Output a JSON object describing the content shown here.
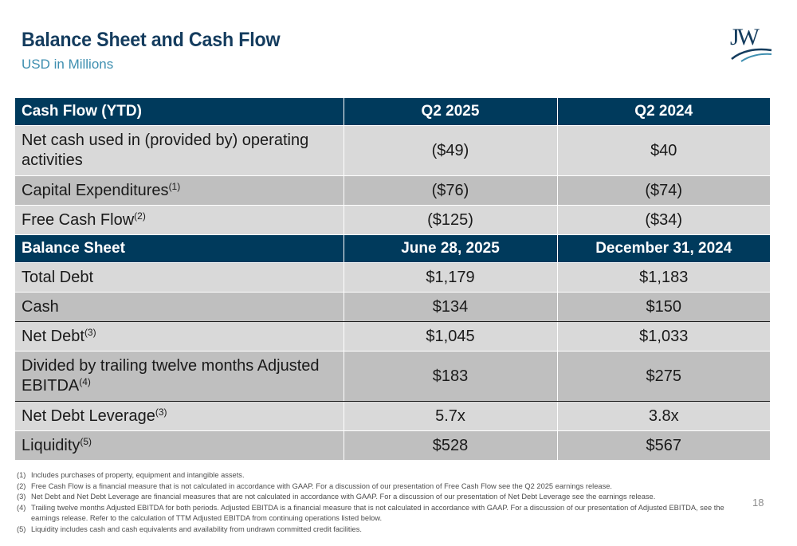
{
  "header": {
    "title": "Balance Sheet and Cash Flow",
    "subtitle": "USD in Millions",
    "logo": "JW"
  },
  "cash_flow": {
    "header": [
      "Cash Flow (YTD)",
      "Q2 2025",
      "Q2 2024"
    ],
    "rows": [
      {
        "label": "Net cash used in (provided by) operating activities",
        "note": "",
        "values": [
          "($49)",
          "$40"
        ]
      },
      {
        "label": "Capital Expenditures",
        "note": "(1)",
        "values": [
          "($76)",
          "($74)"
        ]
      },
      {
        "label": "Free Cash Flow",
        "note": "(2)",
        "values": [
          "($125)",
          "($34)"
        ]
      }
    ]
  },
  "balance_sheet": {
    "header": [
      "Balance Sheet",
      "June 28, 2025",
      "December 31, 2024"
    ],
    "rows": [
      {
        "label": "Total Debt",
        "note": "",
        "values": [
          "$1,179",
          "$1,183"
        ]
      },
      {
        "label": "Cash",
        "note": "",
        "values": [
          "$134",
          "$150"
        ]
      },
      {
        "label": "Net Debt",
        "note": "(3)",
        "values": [
          "$1,045",
          "$1,033"
        ]
      },
      {
        "label": "Divided by trailing twelve months Adjusted EBITDA",
        "note": "(4)",
        "values": [
          "$183",
          "$275"
        ]
      },
      {
        "label": "Net Debt Leverage",
        "note": "(3)",
        "values": [
          "5.7x",
          "3.8x"
        ]
      },
      {
        "label": "Liquidity",
        "note": "(5)",
        "values": [
          "$528",
          "$567"
        ]
      }
    ]
  },
  "footnotes": [
    {
      "num": "(1)",
      "text": "Includes purchases of property, equipment and intangible assets."
    },
    {
      "num": "(2)",
      "text": "Free Cash Flow is a financial measure that is not calculated in accordance with GAAP. For a discussion of our presentation of Free Cash Flow see the Q2 2025 earnings release."
    },
    {
      "num": "(3)",
      "text": "Net Debt and Net Debt Leverage are financial measures that are not calculated in accordance with GAAP. For a discussion of our presentation of Net Debt Leverage see the earnings release."
    },
    {
      "num": "(4)",
      "text": "Trailing twelve months Adjusted EBITDA for both periods. Adjusted EBITDA is a financial measure that is not calculated in accordance with GAAP. For a discussion of our presentation of Adjusted EBITDA, see the earnings release. Refer to the calculation of TTM Adjusted EBITDA from continuing operations listed below."
    },
    {
      "num": "(5)",
      "text": "Liquidity includes cash and cash equivalents and availability from undrawn committed credit facilities."
    }
  ],
  "page_number": "18",
  "colors": {
    "header_fill": "#003a5c",
    "title": "#143c5e",
    "subtitle": "#3f8fb0",
    "row_light": "#d9d9d9",
    "row_dark": "#bfbfbf"
  }
}
